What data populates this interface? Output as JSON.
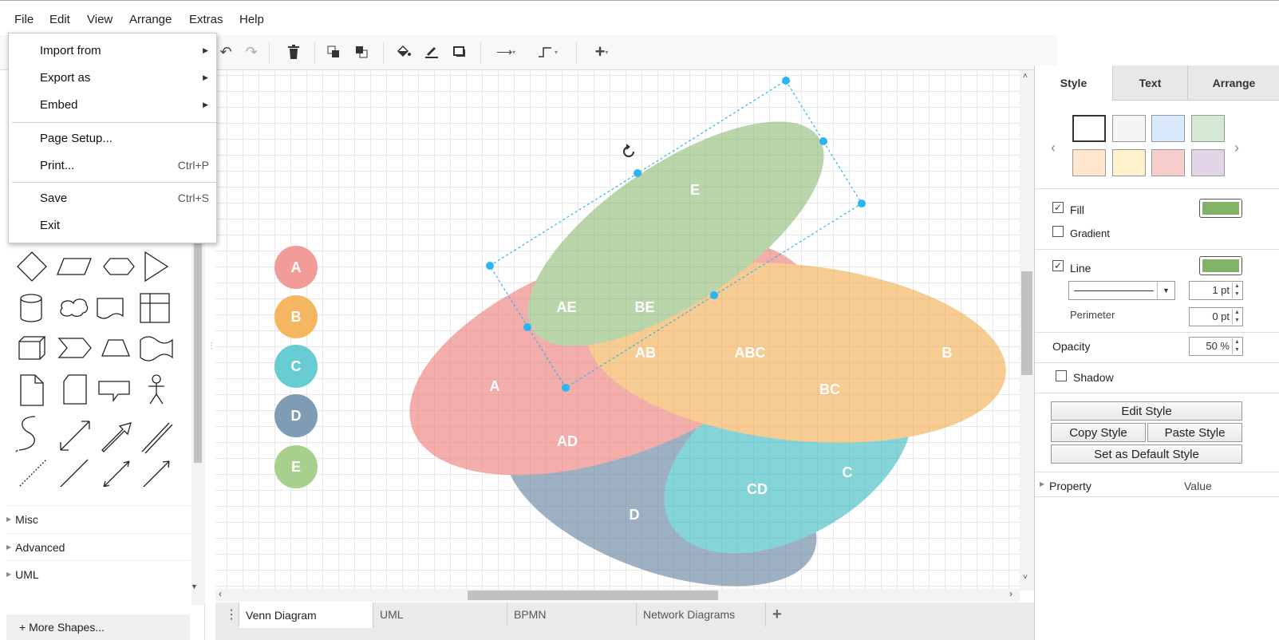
{
  "menubar": {
    "items": [
      "File",
      "Edit",
      "View",
      "Arrange",
      "Extras",
      "Help"
    ]
  },
  "file_menu": {
    "import_label": "Import from",
    "export_label": "Export as",
    "embed_label": "Embed",
    "page_setup_label": "Page Setup...",
    "print_label": "Print...",
    "print_shortcut": "Ctrl+P",
    "save_label": "Save",
    "save_shortcut": "Ctrl+S",
    "exit_label": "Exit"
  },
  "left_panel": {
    "sections": [
      "Misc",
      "Advanced",
      "UML"
    ],
    "more_shapes": "+ More Shapes..."
  },
  "legend": {
    "items": [
      {
        "label": "A",
        "color": "#f19c99"
      },
      {
        "label": "B",
        "color": "#f5b661"
      },
      {
        "label": "C",
        "color": "#68cdd2"
      },
      {
        "label": "D",
        "color": "#7e9cb4"
      },
      {
        "label": "E",
        "color": "#a8d08d"
      }
    ]
  },
  "diagram": {
    "labels": {
      "E": "E",
      "AE": "AE",
      "BE": "BE",
      "AB": "AB",
      "ABC": "ABC",
      "A": "A",
      "B": "B",
      "BC": "BC",
      "AD": "AD",
      "C": "C",
      "CD": "CD",
      "D": "D"
    },
    "colors": {
      "A": "#ea6b66",
      "B": "#f2a33a",
      "C": "#20b2ba",
      "D": "#4f7392",
      "E": "#82b366"
    }
  },
  "page_tabs": [
    "Venn Diagram",
    "UML",
    "BPMN",
    "Network Diagrams"
  ],
  "format_panel": {
    "tabs": [
      "Style",
      "Text",
      "Arrange"
    ],
    "swatches": [
      "#ffffff",
      "#f5f5f5",
      "#dae8fc",
      "#d5e8d4",
      "#ffe6cc",
      "#fff2cc",
      "#f8cecc",
      "#e1d5e7"
    ],
    "fill_label": "Fill",
    "fill_checked": true,
    "fill_color": "#82b366",
    "gradient_label": "Gradient",
    "gradient_checked": false,
    "line_label": "Line",
    "line_checked": true,
    "line_color": "#82b366",
    "line_width": "1 pt",
    "perimeter_label": "Perimeter",
    "perimeter_value": "0 pt",
    "opacity_label": "Opacity",
    "opacity_value": "50 %",
    "shadow_label": "Shadow",
    "shadow_checked": false,
    "edit_style": "Edit Style",
    "copy_style": "Copy Style",
    "paste_style": "Paste Style",
    "set_default": "Set as Default Style",
    "property_header": "Property",
    "value_header": "Value"
  }
}
